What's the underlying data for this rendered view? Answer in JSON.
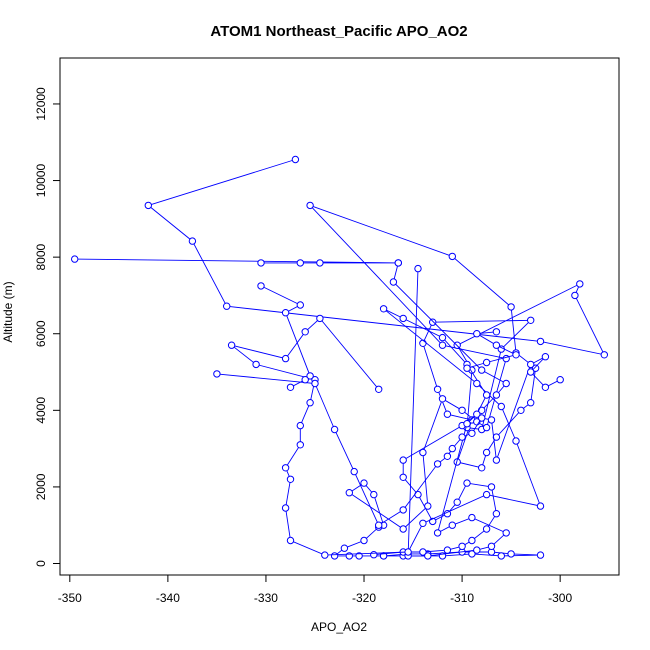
{
  "chart_data": {
    "type": "line",
    "title": "ATOM1 Northeast_Pacific APO_AO2",
    "xlabel": "APO_AO2",
    "ylabel": "Altitude (m)",
    "xlim": [
      -351,
      -294
    ],
    "ylim": [
      -300,
      13200
    ],
    "x_ticks": [
      -350,
      -340,
      -330,
      -320,
      -310,
      -300
    ],
    "y_ticks": [
      0,
      2000,
      4000,
      6000,
      8000,
      10000,
      12000
    ],
    "color": "#0000ff",
    "marker": "open-circle",
    "grid": false,
    "series": [
      {
        "points": [
          [
            -327,
            10550
          ],
          [
            -342,
            9350
          ],
          [
            -337.5,
            8420
          ],
          [
            -334,
            6720
          ],
          [
            -302,
            5800
          ],
          [
            -295.5,
            5450
          ],
          [
            -298.5,
            7000
          ],
          [
            -298,
            7300
          ],
          [
            -310.5,
            5700
          ],
          [
            -309,
            5050
          ],
          [
            -309.5,
            3550
          ],
          [
            -308,
            3500
          ],
          [
            -306,
            5600
          ],
          [
            -303,
            6350
          ],
          [
            -313,
            6300
          ],
          [
            -314,
            5750
          ],
          [
            -312.5,
            4550
          ],
          [
            -311.5,
            3900
          ],
          [
            -309,
            3750
          ],
          [
            -310.5,
            2650
          ],
          [
            -308,
            2500
          ],
          [
            -307.5,
            2900
          ],
          [
            -306.5,
            3300
          ],
          [
            -304,
            4000
          ],
          [
            -303,
            4200
          ],
          [
            -302.5,
            5100
          ],
          [
            -304.5,
            5500
          ],
          [
            -305,
            6700
          ],
          [
            -311,
            8020
          ],
          [
            -325.5,
            9350
          ],
          [
            -312,
            5700
          ],
          [
            -305.5,
            5350
          ],
          [
            -307.5,
            3550
          ],
          [
            -308.5,
            3700
          ],
          [
            -310,
            4000
          ],
          [
            -312,
            4300
          ],
          [
            -314,
            2900
          ],
          [
            -313.5,
            1500
          ],
          [
            -316,
            900
          ],
          [
            -321.5,
            1850
          ],
          [
            -320,
            2100
          ],
          [
            -319,
            1800
          ],
          [
            -318,
            1000
          ],
          [
            -318.5,
            950
          ],
          [
            -320,
            600
          ],
          [
            -322,
            400
          ],
          [
            -323,
            200
          ],
          [
            -321.5,
            200
          ],
          [
            -320.5,
            200
          ],
          [
            -318,
            200
          ],
          [
            -316,
            200
          ],
          [
            -312,
            200
          ],
          [
            -309,
            250
          ],
          [
            -306,
            200
          ],
          [
            -302,
            220
          ],
          [
            -305,
            250
          ],
          [
            -307,
            300
          ],
          [
            -310,
            300
          ],
          [
            -313.5,
            250
          ],
          [
            -315.5,
            250
          ],
          [
            -318,
            200
          ]
        ]
      },
      {
        "points": [
          [
            -349.5,
            7950
          ],
          [
            -316.5,
            7850
          ],
          [
            -326.5,
            7850
          ],
          [
            -330.5,
            7850
          ],
          [
            -324.5,
            7850
          ],
          [
            -316.5,
            7850
          ],
          [
            -317,
            7350
          ],
          [
            -308,
            5050
          ],
          [
            -305.5,
            4700
          ],
          [
            -306.5,
            4400
          ],
          [
            -308,
            4000
          ],
          [
            -310,
            3600
          ],
          [
            -316,
            2700
          ],
          [
            -316,
            2250
          ],
          [
            -314.5,
            1800
          ],
          [
            -313,
            1100
          ],
          [
            -311.5,
            1300
          ],
          [
            -310.5,
            1600
          ],
          [
            -309.5,
            2100
          ],
          [
            -307,
            2000
          ],
          [
            -306.5,
            1300
          ],
          [
            -307.5,
            900
          ],
          [
            -309,
            600
          ],
          [
            -310,
            450
          ],
          [
            -311.5,
            350
          ],
          [
            -314,
            300
          ],
          [
            -316,
            300
          ],
          [
            -319,
            230
          ]
        ]
      },
      {
        "points": [
          [
            -314.5,
            7700
          ],
          [
            -315.5,
            200
          ],
          [
            -313.5,
            200
          ],
          [
            -308.5,
            350
          ],
          [
            -307,
            450
          ],
          [
            -305.5,
            800
          ],
          [
            -309,
            1200
          ],
          [
            -311,
            1000
          ],
          [
            -312.5,
            800
          ],
          [
            -309.5,
            3650
          ],
          [
            -308.5,
            3900
          ],
          [
            -307.5,
            4400
          ],
          [
            -309.5,
            5200
          ],
          [
            -312,
            5900
          ],
          [
            -316,
            6400
          ],
          [
            -318,
            6650
          ],
          [
            -308.5,
            4700
          ],
          [
            -306,
            4100
          ],
          [
            -304.5,
            3200
          ],
          [
            -302,
            1500
          ],
          [
            -307.5,
            1800
          ],
          [
            -314,
            1050
          ],
          [
            -315.5,
            300
          ],
          [
            -324,
            220
          ],
          [
            -327.5,
            600
          ],
          [
            -328,
            1450
          ],
          [
            -327.5,
            2200
          ],
          [
            -328,
            2500
          ],
          [
            -326.5,
            3100
          ],
          [
            -326.5,
            3600
          ],
          [
            -325.5,
            4200
          ],
          [
            -325,
            4800
          ],
          [
            -331,
            5200
          ],
          [
            -333.5,
            5700
          ],
          [
            -328,
            5350
          ],
          [
            -326,
            6050
          ],
          [
            -324.5,
            6400
          ],
          [
            -318.5,
            4550
          ]
        ]
      },
      {
        "points": [
          [
            -335,
            4950
          ],
          [
            -325,
            4700
          ],
          [
            -323,
            3500
          ],
          [
            -321,
            2400
          ],
          [
            -318.5,
            1000
          ],
          [
            -316,
            1400
          ],
          [
            -312.5,
            2600
          ],
          [
            -311.5,
            2800
          ],
          [
            -311,
            3000
          ],
          [
            -310,
            3300
          ],
          [
            -309,
            3400
          ],
          [
            -308,
            3800
          ],
          [
            -307,
            3750
          ],
          [
            -306.5,
            2700
          ],
          [
            -303,
            5200
          ],
          [
            -301.5,
            5400
          ],
          [
            -303,
            5000
          ],
          [
            -301.5,
            4600
          ],
          [
            -300,
            4800
          ]
        ]
      },
      {
        "points": [
          [
            -330.5,
            7250
          ],
          [
            -326.5,
            6750
          ],
          [
            -328,
            6550
          ],
          [
            -325.5,
            4900
          ],
          [
            -326,
            4800
          ],
          [
            -327.5,
            4600
          ]
        ]
      },
      {
        "points": [
          [
            -306.5,
            6050
          ],
          [
            -308.5,
            6000
          ],
          [
            -306.5,
            5700
          ],
          [
            -304.5,
            5450
          ],
          [
            -307.5,
            5250
          ],
          [
            -309.5,
            5100
          ]
        ]
      }
    ]
  }
}
